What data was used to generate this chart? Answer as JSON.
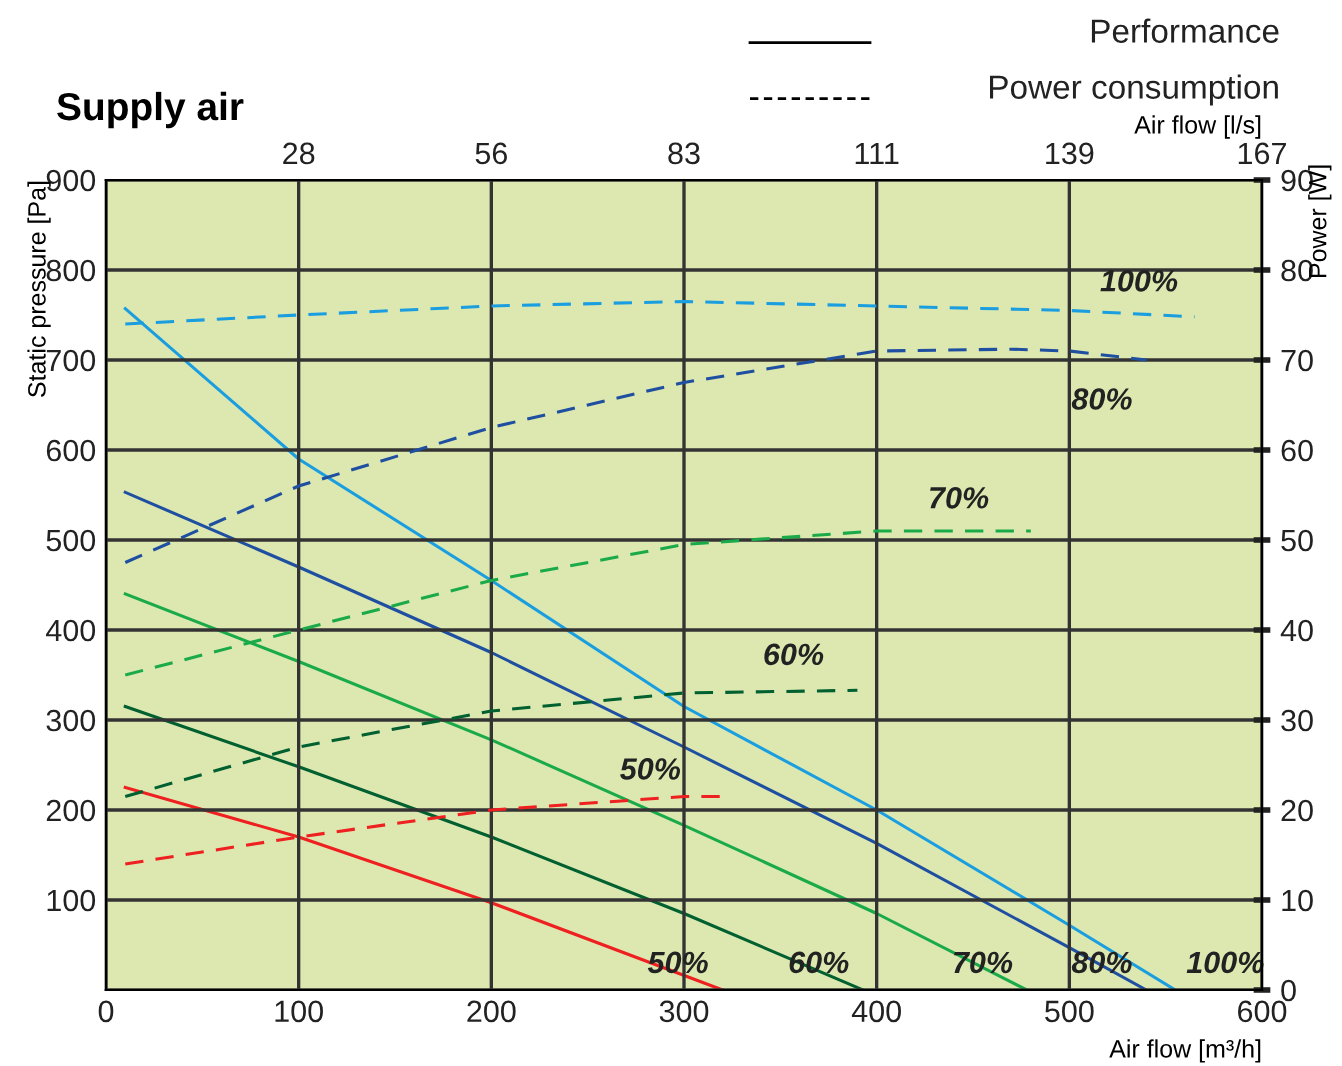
{
  "chart_data": {
    "type": "line",
    "title": "Supply air",
    "xlabel": "Air flow [m³/h]",
    "x2label": "Air flow [l/s]",
    "ylabel": "Static pressure [Pa]",
    "y2label": "Power [W]",
    "xlim": [
      0,
      600
    ],
    "xticks": [
      0,
      100,
      200,
      300,
      400,
      500,
      600
    ],
    "x2lim": [
      0,
      166.67
    ],
    "x2ticks": [
      {
        "value": 27.78,
        "label": "28"
      },
      {
        "value": 55.56,
        "label": "56"
      },
      {
        "value": 83.33,
        "label": "83"
      },
      {
        "value": 111.11,
        "label": "111"
      },
      {
        "value": 138.89,
        "label": "139"
      },
      {
        "value": 166.67,
        "label": "167"
      }
    ],
    "ylim": [
      0,
      900
    ],
    "yticks": [
      {
        "value": 0,
        "label": null
      },
      100,
      200,
      300,
      400,
      500,
      600,
      700,
      800,
      900
    ],
    "y2lim": [
      0,
      90
    ],
    "y2ticks": [
      0,
      10,
      20,
      30,
      40,
      50,
      60,
      70,
      80,
      90
    ],
    "grid": true,
    "legend": false,
    "series": [
      {
        "name": "100%",
        "color": "#1a9ee0",
        "line_style": "solid",
        "x": [
          10,
          100,
          200,
          300,
          400,
          500,
          555
        ],
        "values": [
          757,
          590,
          455,
          315,
          200,
          72,
          0
        ]
      },
      {
        "name": "80%",
        "color": "#1f4fa0",
        "line_style": "solid",
        "x": [
          10,
          100,
          200,
          300,
          400,
          500,
          540
        ],
        "values": [
          553,
          470,
          375,
          270,
          163,
          47,
          0
        ]
      },
      {
        "name": "70%",
        "color": "#1aaa4a",
        "line_style": "solid",
        "x": [
          10,
          100,
          200,
          300,
          400,
          478
        ],
        "values": [
          440,
          365,
          278,
          183,
          85,
          0
        ]
      },
      {
        "name": "60%",
        "color": "#006030",
        "line_style": "solid",
        "x": [
          10,
          100,
          200,
          300,
          393
        ],
        "values": [
          315,
          248,
          170,
          85,
          0
        ]
      },
      {
        "name": "50%",
        "color": "#ee2020",
        "line_style": "solid",
        "x": [
          10,
          100,
          200,
          320
        ],
        "values": [
          225,
          170,
          97,
          0
        ]
      },
      {
        "name": "100%",
        "color": "#1a9ee0",
        "line_style": "dashed",
        "axis": "y2",
        "x": [
          10,
          100,
          200,
          300,
          400,
          500,
          565
        ],
        "values": [
          74,
          75,
          76,
          76.5,
          76,
          75.5,
          74.8
        ]
      },
      {
        "name": "80%",
        "color": "#1f4fa0",
        "line_style": "dashed",
        "axis": "y2",
        "x": [
          10,
          100,
          200,
          300,
          400,
          470,
          500,
          540
        ],
        "values": [
          47.5,
          56,
          62.5,
          67.5,
          71,
          71.2,
          71,
          70
        ]
      },
      {
        "name": "70%",
        "color": "#1aaa4a",
        "line_style": "dashed",
        "axis": "y2",
        "x": [
          10,
          100,
          200,
          300,
          400,
          480
        ],
        "values": [
          35,
          40,
          45.5,
          49.5,
          51,
          51
        ]
      },
      {
        "name": "60%",
        "color": "#006030",
        "line_style": "dashed",
        "axis": "y2",
        "x": [
          10,
          100,
          200,
          300,
          390
        ],
        "values": [
          21.5,
          27,
          31,
          33,
          33.3
        ]
      },
      {
        "name": "50%",
        "color": "#ee2020",
        "line_style": "dashed",
        "axis": "y2",
        "x": [
          10,
          100,
          200,
          300,
          320
        ],
        "values": [
          14,
          17,
          20,
          21.5,
          21.5
        ]
      }
    ],
    "annotations": [
      "Performance",
      "Power consumption"
    ]
  }
}
